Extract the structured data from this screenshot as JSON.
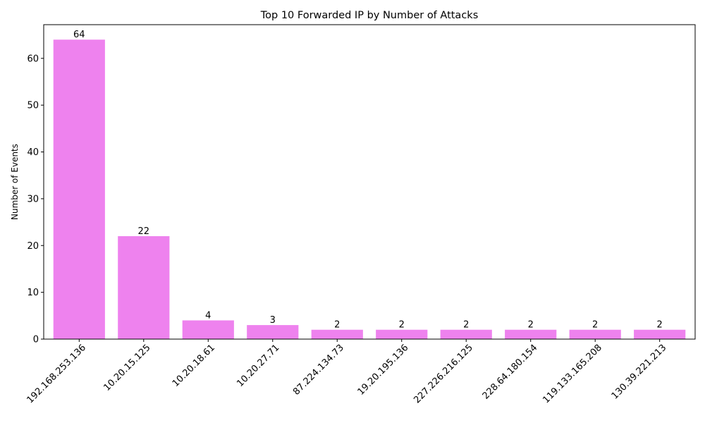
{
  "chart_data": {
    "type": "bar",
    "title": "Top 10 Forwarded IP by Number of Attacks",
    "xlabel": "",
    "ylabel": "Number of Events",
    "categories": [
      "192.168.253.136",
      "10.20.15.125",
      "10.20.18.61",
      "10.20.27.71",
      "87.224.134.73",
      "19.20.195.136",
      "227.226.216.125",
      "228.64.180.154",
      "119.133.165.208",
      "130.39.221.213"
    ],
    "values": [
      64,
      22,
      4,
      3,
      2,
      2,
      2,
      2,
      2,
      2
    ],
    "ylim": [
      0,
      67.2
    ],
    "yticks": [
      0,
      10,
      20,
      30,
      40,
      50,
      60
    ],
    "xtick_rotation_deg": 45,
    "bar_color": "#ee82ee",
    "data_labels": true,
    "grid": false,
    "legend": "none"
  }
}
